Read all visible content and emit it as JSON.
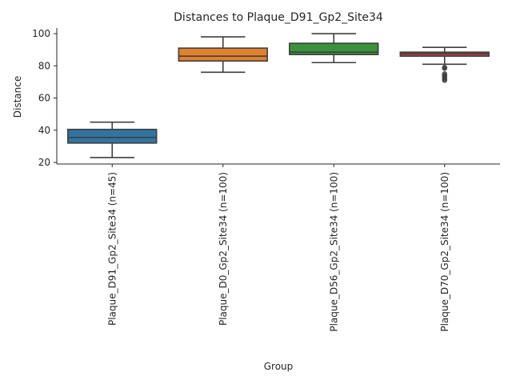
{
  "chart_data": {
    "type": "box",
    "title": "Distances to Plaque_D91_Gp2_Site34",
    "xlabel": "Group",
    "ylabel": "Distance",
    "ylim": [
      19,
      103.5
    ],
    "yticks": [
      20,
      40,
      60,
      80,
      100
    ],
    "grid": false,
    "legend": "none",
    "categories": [
      "Plaque_D91_Gp2_Site34 (n=45)",
      "Plaque_D0_Gp2_Site34 (n=100)",
      "Plaque_D56_Gp2_Site34 (n=100)",
      "Plaque_D70_Gp2_Site34 (n=100)"
    ],
    "boxes": [
      {
        "whisker_low": 23,
        "q1": 32,
        "median": 35.5,
        "q3": 40.5,
        "whisker_high": 45,
        "outliers": [],
        "color": "#3274a1"
      },
      {
        "whisker_low": 76,
        "q1": 83,
        "median": 86,
        "q3": 91,
        "whisker_high": 98,
        "outliers": [],
        "color": "#e1812c"
      },
      {
        "whisker_low": 82,
        "q1": 87,
        "median": 88.5,
        "q3": 94,
        "whisker_high": 100,
        "outliers": [],
        "color": "#3a923a"
      },
      {
        "whisker_low": 81,
        "q1": 86,
        "median": 87.5,
        "q3": 88.5,
        "whisker_high": 91.5,
        "outliers": [
          79,
          78.5,
          75,
          74,
          73,
          72,
          71
        ],
        "color": "#c03d3e"
      }
    ]
  }
}
